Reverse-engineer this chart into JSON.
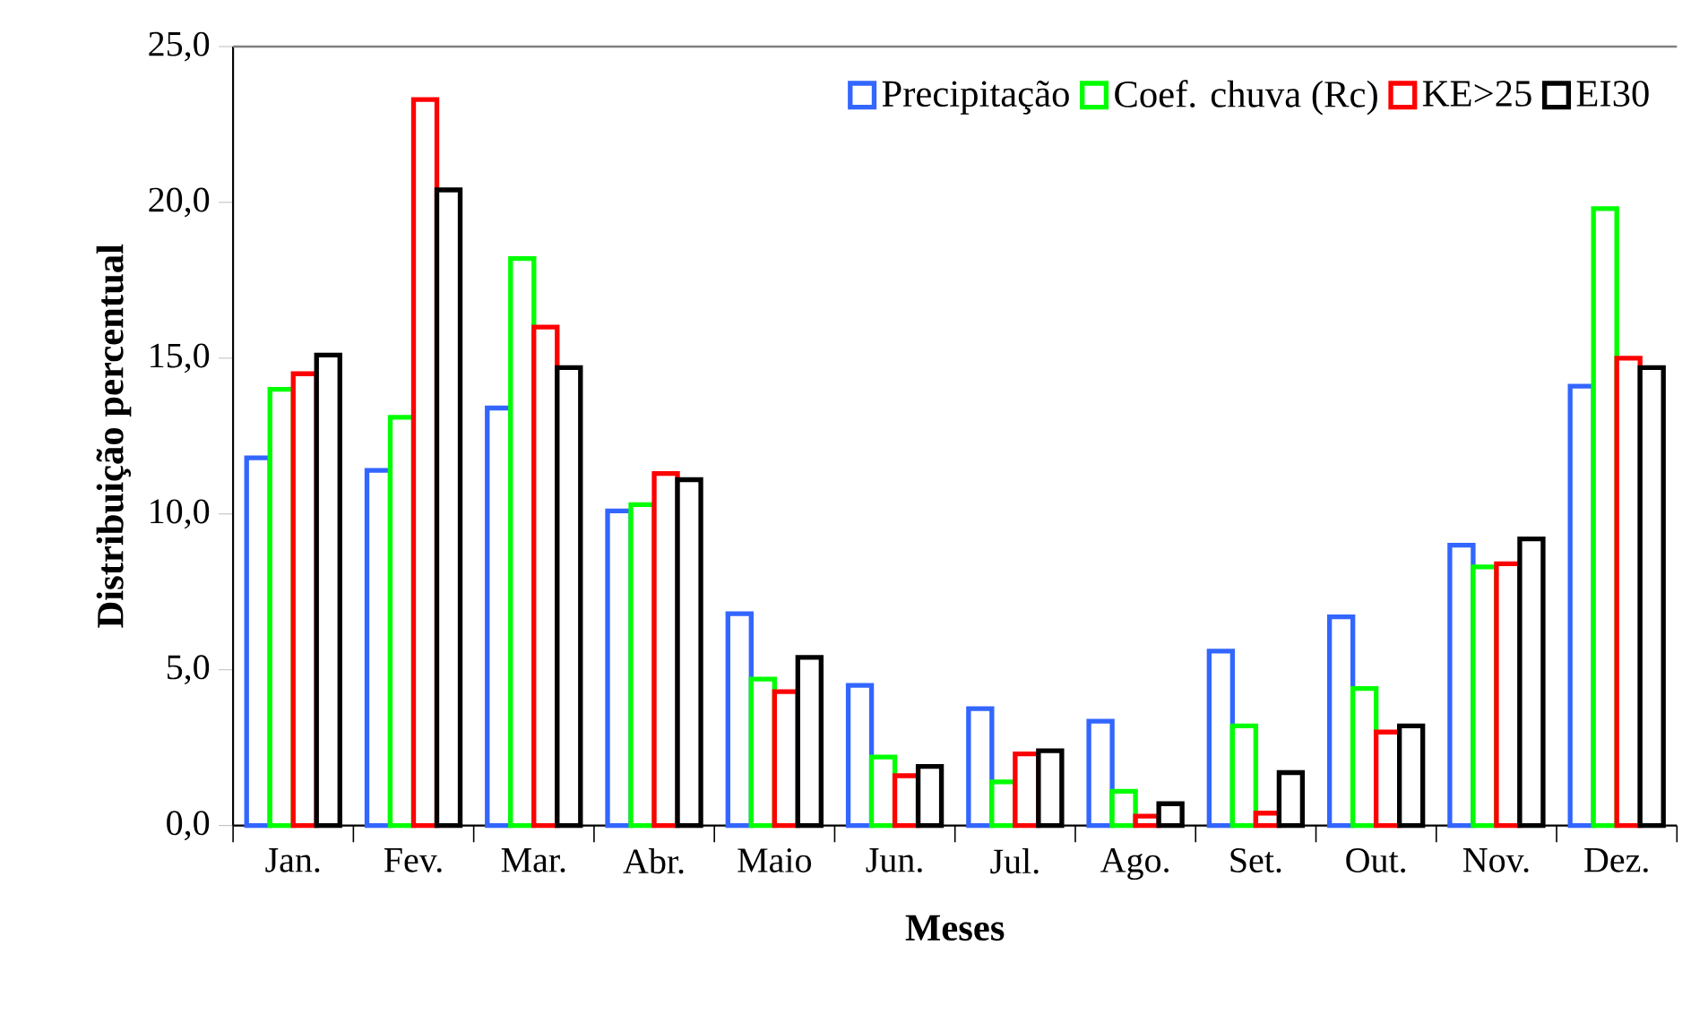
{
  "chart_data": {
    "type": "bar",
    "xlabel": "Meses",
    "ylabel": "Distribuição percentual",
    "categories": [
      "Jan.",
      "Fev.",
      "Mar.",
      "Abr.",
      "Maio",
      "Jun.",
      "Jul.",
      "Ago.",
      "Set.",
      "Out.",
      "Nov.",
      "Dez."
    ],
    "series": [
      {
        "name": "Precipitação",
        "color": "#3366ff",
        "values": [
          11.8,
          11.4,
          13.4,
          10.1,
          6.8,
          4.5,
          3.75,
          3.35,
          5.6,
          6.7,
          9.0,
          14.1
        ]
      },
      {
        "name": "Coef. chuva (Rc)",
        "color": "#00ff00",
        "values": [
          14.0,
          13.1,
          18.2,
          10.3,
          4.7,
          2.2,
          1.4,
          1.1,
          3.2,
          4.4,
          8.3,
          19.8
        ]
      },
      {
        "name": "KE>25",
        "color": "#ff0000",
        "values": [
          14.5,
          23.3,
          16.0,
          11.3,
          4.3,
          1.6,
          2.3,
          0.3,
          0.4,
          3.0,
          8.4,
          15.0
        ]
      },
      {
        "name": "EI30",
        "color": "#000000",
        "values": [
          15.1,
          20.4,
          14.7,
          11.1,
          5.4,
          1.9,
          2.4,
          0.7,
          1.7,
          3.2,
          9.2,
          14.7
        ]
      }
    ],
    "ylim": [
      0,
      25
    ],
    "yticks": [
      {
        "value": 0,
        "label": "0,0"
      },
      {
        "value": 5,
        "label": "5,0"
      },
      {
        "value": 10,
        "label": "10,0"
      },
      {
        "value": 15,
        "label": "15,0"
      },
      {
        "value": 20,
        "label": "20,0"
      },
      {
        "value": 25,
        "label": "25,0"
      }
    ],
    "grid": false,
    "legend": "top right"
  }
}
